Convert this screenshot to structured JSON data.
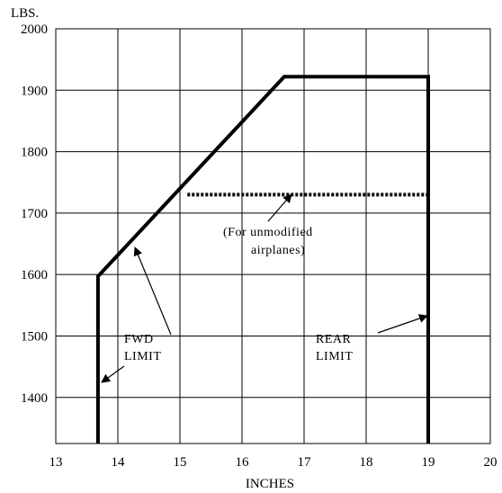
{
  "chart_data": {
    "type": "line",
    "title": "",
    "xlabel": "INCHES",
    "ylabel": "LBS.",
    "xlim": [
      13,
      20
    ],
    "ylim": [
      1325,
      2000
    ],
    "grid": true,
    "x_ticks": [
      "13",
      "14",
      "15",
      "16",
      "17",
      "18",
      "19",
      "20"
    ],
    "y_ticks": [
      "1400",
      "1500",
      "1600",
      "1700",
      "1800",
      "1900",
      "2000"
    ],
    "series": [
      {
        "style": "solid",
        "points": [
          [
            13.68,
            1325
          ],
          [
            13.68,
            1597
          ],
          [
            16.68,
            1922
          ],
          [
            19.0,
            1922
          ],
          [
            19.0,
            1325
          ]
        ]
      },
      {
        "style": "dotted",
        "points": [
          [
            15.12,
            1730
          ],
          [
            19.0,
            1730
          ]
        ]
      }
    ],
    "annotations": {
      "fwd_line1": "FWD",
      "fwd_line2": "LIMIT",
      "rear_line1": "REAR",
      "rear_line2": "LIMIT",
      "unmod_line1": "(For unmodified",
      "unmod_line2": "airplanes)"
    }
  }
}
